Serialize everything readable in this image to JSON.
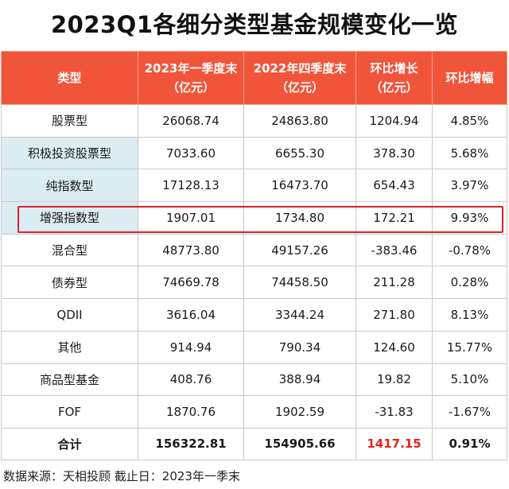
{
  "title": "2023Q1各细分类型基金规模变化一览",
  "table": {
    "headers": [
      {
        "line1": "类型",
        "line2": ""
      },
      {
        "line1": "2023年一季度末",
        "line2": "（亿元）"
      },
      {
        "line1": "2022年四季度末",
        "line2": "（亿元）"
      },
      {
        "line1": "环比增长",
        "line2": "（亿元）"
      },
      {
        "line1": "环比增幅",
        "line2": ""
      }
    ],
    "rows": [
      {
        "type": "股票型",
        "q1_2023": "26068.74",
        "q4_2022": "24863.80",
        "change": "1204.94",
        "pct": "4.85%"
      },
      {
        "type": "积极投资股票型",
        "q1_2023": "7033.60",
        "q4_2022": "6655.30",
        "change": "378.30",
        "pct": "5.68%"
      },
      {
        "type": "纯指数型",
        "q1_2023": "17128.13",
        "q4_2022": "16473.70",
        "change": "654.43",
        "pct": "3.97%"
      },
      {
        "type": "增强指数型",
        "q1_2023": "1907.01",
        "q4_2022": "1734.80",
        "change": "172.21",
        "pct": "9.93%"
      },
      {
        "type": "混合型",
        "q1_2023": "48773.80",
        "q4_2022": "49157.26",
        "change": "-383.46",
        "pct": "-0.78%"
      },
      {
        "type": "债券型",
        "q1_2023": "74669.78",
        "q4_2022": "74458.50",
        "change": "211.28",
        "pct": "0.28%"
      },
      {
        "type": "QDII",
        "q1_2023": "3616.04",
        "q4_2022": "3344.24",
        "change": "271.80",
        "pct": "8.13%"
      },
      {
        "type": "其他",
        "q1_2023": "914.94",
        "q4_2022": "790.34",
        "change": "124.60",
        "pct": "15.77%"
      },
      {
        "type": "商品型基金",
        "q1_2023": "408.76",
        "q4_2022": "388.94",
        "change": "19.82",
        "pct": "5.10%"
      },
      {
        "type": "FOF",
        "q1_2023": "1870.76",
        "q4_2022": "1902.59",
        "change": "-31.83",
        "pct": "-1.67%"
      }
    ],
    "total": {
      "type": "合计",
      "q1_2023": "156322.81",
      "q4_2022": "154905.66",
      "change": "1417.15",
      "pct": "0.91%"
    }
  },
  "source": "数据来源：天相投顾  截止日：2023年一季末",
  "colors": {
    "header_bg": "#f0553a",
    "sub_category_bg": "#dbecf3",
    "highlight_border": "#d9232a",
    "total_change_text": "#e8231a"
  }
}
